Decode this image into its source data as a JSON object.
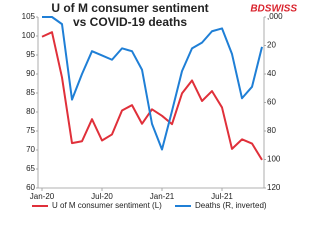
{
  "chart_data": {
    "type": "line",
    "title": "U of M consumer sentiment",
    "subtitle": "vs COVID-19 deaths",
    "logo": "BDSWISS",
    "categories": [
      "Jan-20",
      null,
      null,
      null,
      null,
      null,
      "Jul-20",
      null,
      null,
      null,
      null,
      null,
      "Jan-21",
      null,
      null,
      null,
      null,
      null,
      "Jul-21",
      null,
      null,
      null,
      null
    ],
    "series": [
      {
        "name": "U of M consumer sentiment (L)",
        "color": "#e0303a",
        "axis": "y",
        "values": [
          99.8,
          101.0,
          89.1,
          71.8,
          72.3,
          78.1,
          72.5,
          74.1,
          80.4,
          81.8,
          76.9,
          80.7,
          79.0,
          76.8,
          84.9,
          88.3,
          82.9,
          85.5,
          81.2,
          70.3,
          72.8,
          71.7,
          67.4
        ]
      },
      {
        "name": "Deaths (R, inverted)",
        "color": "#1f7fd6",
        "axis": "y2",
        "values": [
          0,
          0,
          5,
          58,
          40,
          24,
          27,
          30,
          22,
          24,
          37,
          75,
          93,
          66,
          38,
          22,
          18,
          10,
          8,
          26,
          57,
          49,
          21
        ]
      }
    ],
    "ylim": [
      60,
      105
    ],
    "yticks": [
      60,
      65,
      70,
      75,
      80,
      85,
      90,
      95,
      100,
      105
    ],
    "y2lim": [
      0,
      120
    ],
    "y2inverted": true,
    "y2ticks": [
      {
        "value": 0,
        "label": ",000"
      },
      20,
      40,
      60,
      80,
      100,
      120
    ],
    "grid": false
  }
}
